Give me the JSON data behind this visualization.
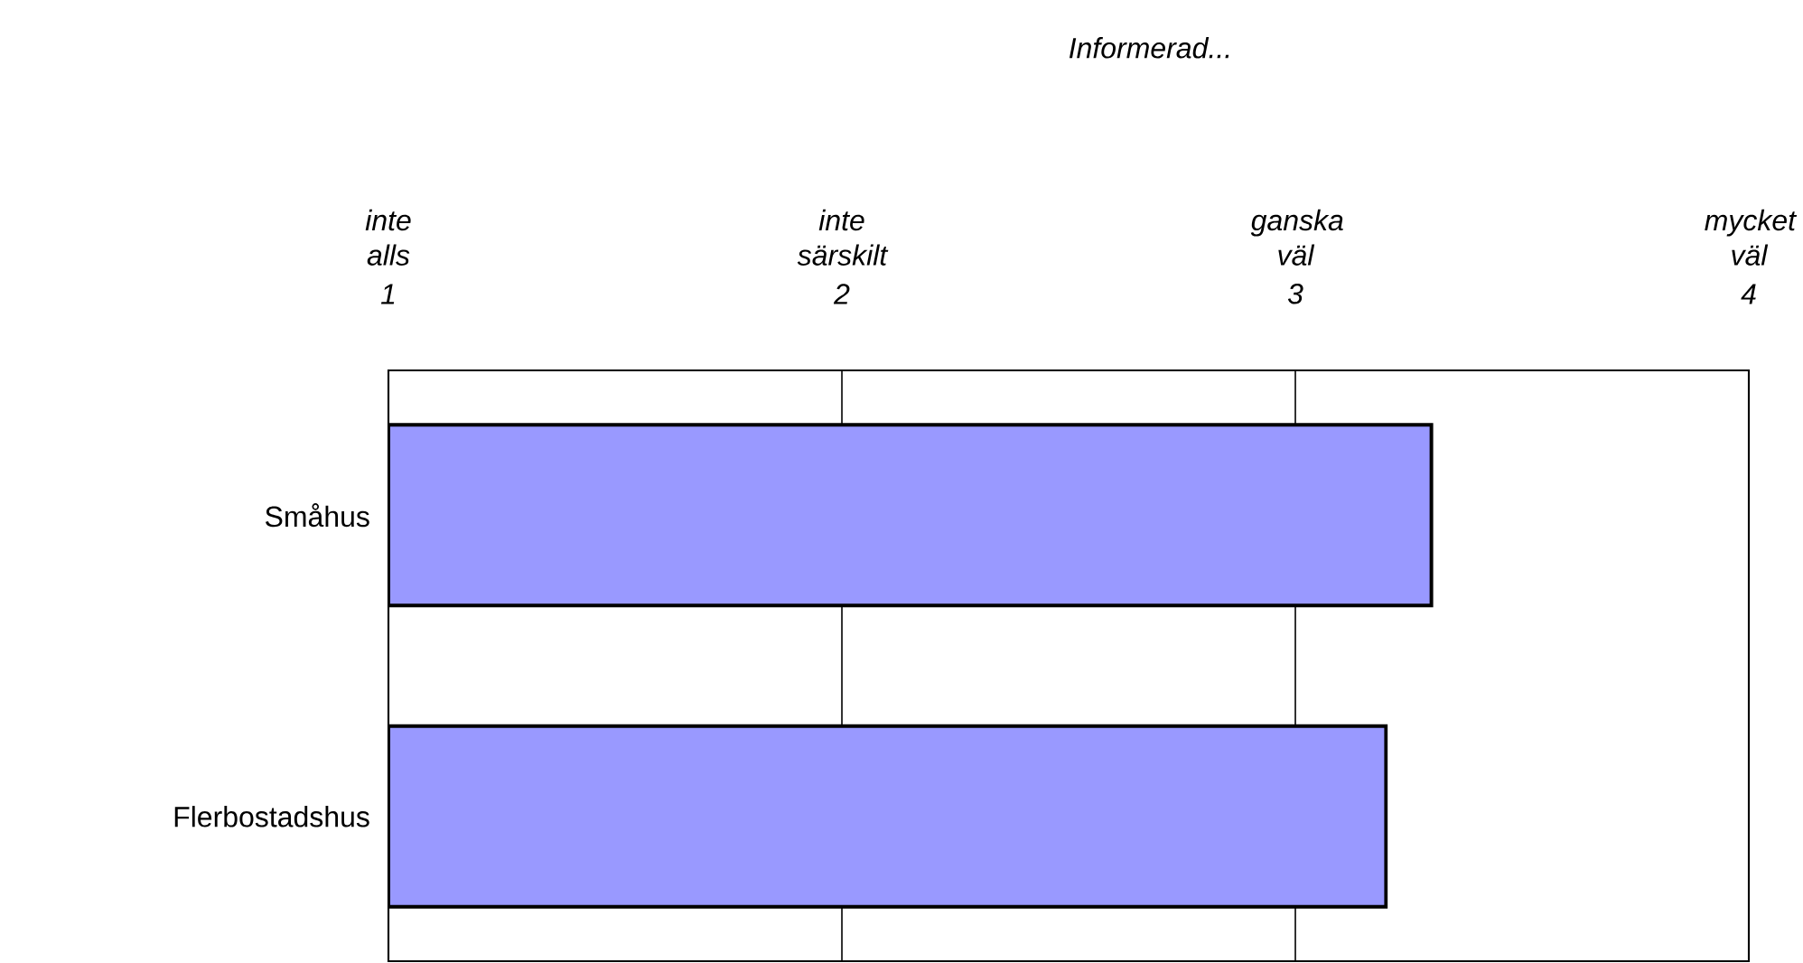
{
  "chart_data": {
    "type": "bar",
    "orientation": "horizontal",
    "title": "Informerad...",
    "categories": [
      "Småhus",
      "Flerbostadshus"
    ],
    "values": [
      3.3,
      3.2
    ],
    "colors": [
      "#9999ff",
      "#9999ff"
    ],
    "xlim": [
      1,
      4
    ],
    "xticks": [
      1,
      2,
      3,
      4
    ],
    "annotations": [
      "inte alls",
      "inte särskilt",
      "ganska väl",
      "mycket väl"
    ],
    "grid": "x"
  }
}
